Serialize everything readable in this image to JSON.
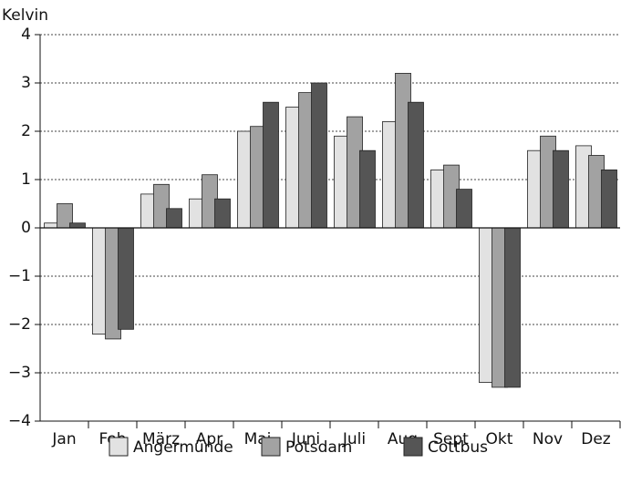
{
  "chart_data": {
    "type": "bar",
    "y_label": "Kelvin",
    "categories": [
      "Jan",
      "Feb",
      "März",
      "Apr",
      "Mai",
      "Juni",
      "Juli",
      "Aug",
      "Sept",
      "Okt",
      "Nov",
      "Dez"
    ],
    "series": [
      {
        "name": "Angermünde",
        "color": "#e2e2e2",
        "values": [
          0.1,
          -2.2,
          0.7,
          0.6,
          2.0,
          2.5,
          1.9,
          2.2,
          1.2,
          -3.2,
          1.6,
          1.7
        ]
      },
      {
        "name": "Potsdam",
        "color": "#a2a2a2",
        "values": [
          0.5,
          -2.3,
          0.9,
          1.1,
          2.1,
          2.8,
          2.3,
          3.2,
          1.3,
          -3.3,
          1.9,
          1.5
        ]
      },
      {
        "name": "Cottbus",
        "color": "#555555",
        "values": [
          0.1,
          -2.1,
          0.4,
          0.6,
          2.6,
          3.0,
          1.6,
          2.6,
          0.8,
          -3.3,
          1.6,
          1.2
        ]
      }
    ],
    "ylim": [
      -4,
      4
    ],
    "yticks": [
      {
        "value": -4,
        "label": "−4"
      },
      {
        "value": -3,
        "label": "−3"
      },
      {
        "value": -2,
        "label": "−2"
      },
      {
        "value": -1,
        "label": "−1"
      },
      0,
      1,
      2,
      3,
      4
    ],
    "grid": true,
    "legend": "bottom"
  }
}
